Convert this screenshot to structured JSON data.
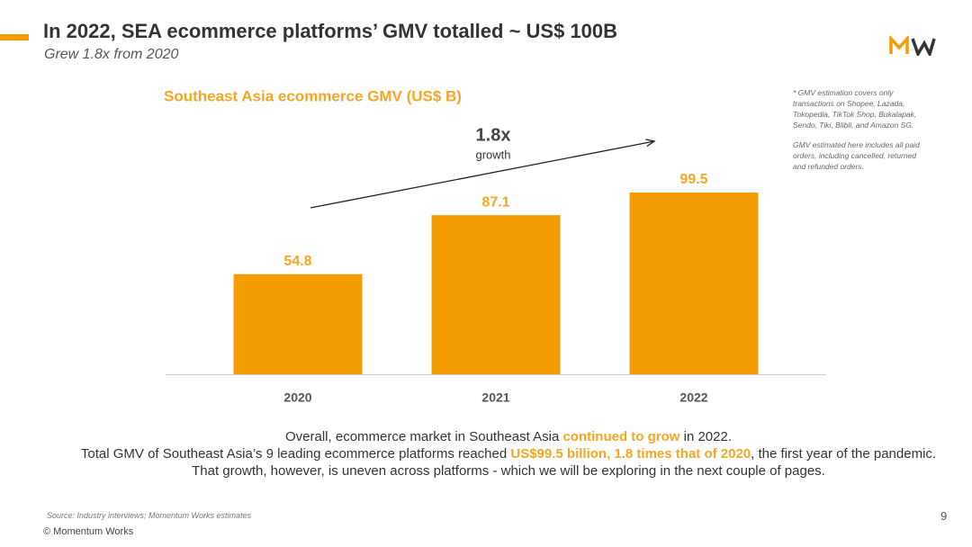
{
  "header": {
    "title": "In 2022, SEA ecommerce platforms’ GMV totalled ~ US$ 100B",
    "subtitle": "Grew 1.8x from 2020"
  },
  "chart_data": {
    "type": "bar",
    "title": "Southeast Asia ecommerce GMV (US$ B)",
    "categories": [
      "2020",
      "2021",
      "2022"
    ],
    "values": [
      54.8,
      87.1,
      99.5
    ],
    "color": "#f59d00",
    "annotation": {
      "text": "1.8x",
      "subtext": "growth"
    }
  },
  "notes": [
    "* GMV estimation covers only transactions on Shopee, Lazada, Tokopedia, TikTok Shop, Bukalapak, Sendo, Tiki, Blibli, and Amazon SG.",
    "GMV estimated here includes all paid orders, including cancelled, returned and refunded orders."
  ],
  "body": [
    [
      {
        "text": "Overall, ecommerce market in Southeast Asia ",
        "highlight": false
      },
      {
        "text": "continued to grow",
        "highlight": true
      },
      {
        "text": " in 2022.",
        "highlight": false
      }
    ],
    [
      {
        "text": "Total GMV of Southeast Asia’s 9 leading ecommerce platforms reached ",
        "highlight": false
      },
      {
        "text": "US$99.5 billion, 1.8 times that of 2020",
        "highlight": true
      },
      {
        "text": ", the first year of the pandemic.",
        "highlight": false
      }
    ],
    [
      {
        "text": "That growth, however, is uneven across platforms - which we will be exploring in the next couple of pages.",
        "highlight": false
      }
    ]
  ],
  "footer": {
    "source": "Source: Industry interviews; Momentum Works estimates",
    "copyright": "© Momentum Works",
    "page": 9
  }
}
